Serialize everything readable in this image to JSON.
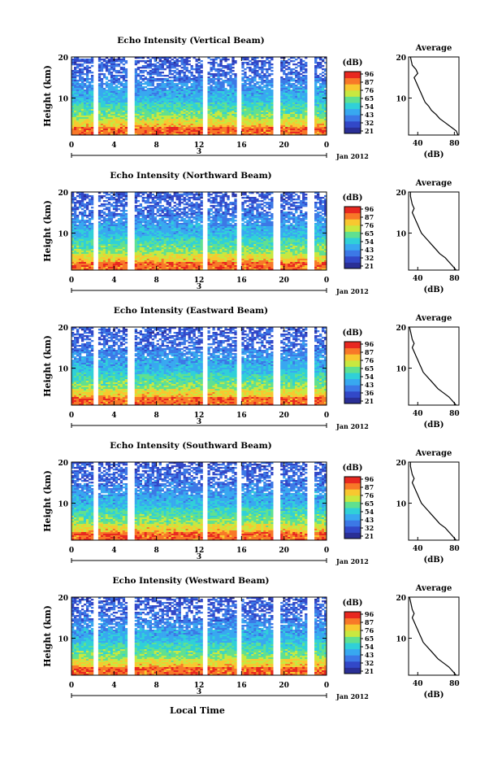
{
  "chart_data": [
    {
      "type": "heatmap",
      "title": "Echo Intensity (Vertical Beam)",
      "ylabel": "Height (km)",
      "x_ticks": [
        "0",
        "4",
        "8",
        "12",
        "16",
        "20",
        "0"
      ],
      "y_ticks": [
        "20",
        "10"
      ],
      "xlim": [
        0,
        24
      ],
      "ylim": [
        1,
        20
      ],
      "colorbar_unit": "(dB)",
      "colorbar_ticks": [
        "96",
        "87",
        "76",
        "65",
        "54",
        "43",
        "32",
        "21"
      ],
      "date_marker": "3",
      "date_label": "Jan 2012",
      "profile": {
        "title": "Average",
        "xlabel": "(dB)",
        "x_ticks": [
          "40",
          "80"
        ],
        "y_ticks": [
          "20",
          "10"
        ],
        "xlim": [
          30,
          85
        ],
        "heights": [
          1,
          2,
          3,
          4,
          5,
          6,
          7,
          8,
          9,
          10,
          11,
          12,
          13,
          14,
          15,
          16,
          17,
          18,
          19,
          20
        ],
        "values": [
          84,
          82,
          76,
          70,
          64,
          60,
          55,
          52,
          48,
          46,
          44,
          42,
          40,
          38,
          36,
          40,
          38,
          34,
          33,
          32
        ]
      }
    },
    {
      "type": "heatmap",
      "title": "Echo Intensity (Northward Beam)",
      "ylabel": "Height (km)",
      "x_ticks": [
        "0",
        "4",
        "8",
        "12",
        "16",
        "20",
        "0"
      ],
      "y_ticks": [
        "20",
        "10"
      ],
      "xlim": [
        0,
        24
      ],
      "ylim": [
        1,
        20
      ],
      "colorbar_unit": "(dB)",
      "colorbar_ticks": [
        "96",
        "87",
        "76",
        "65",
        "54",
        "43",
        "32",
        "21"
      ],
      "date_marker": "3",
      "date_label": "Jan 2012",
      "profile": {
        "title": "Average",
        "xlabel": "(dB)",
        "x_ticks": [
          "40",
          "80"
        ],
        "y_ticks": [
          "20",
          "10"
        ],
        "xlim": [
          30,
          85
        ],
        "heights": [
          1,
          2,
          3,
          4,
          5,
          6,
          7,
          8,
          9,
          10,
          11,
          12,
          13,
          14,
          15,
          16,
          17,
          18,
          19,
          20
        ],
        "values": [
          82,
          78,
          74,
          70,
          64,
          60,
          56,
          52,
          48,
          44,
          42,
          40,
          38,
          36,
          34,
          36,
          34,
          33,
          32,
          32
        ]
      }
    },
    {
      "type": "heatmap",
      "title": "Echo Intensity (Eastward Beam)",
      "ylabel": "Height (km)",
      "x_ticks": [
        "0",
        "4",
        "8",
        "12",
        "16",
        "20",
        "0"
      ],
      "y_ticks": [
        "20",
        "10"
      ],
      "xlim": [
        0,
        24
      ],
      "ylim": [
        1,
        20
      ],
      "colorbar_unit": "(dB)",
      "colorbar_ticks": [
        "96",
        "87",
        "76",
        "65",
        "54",
        "43",
        "36",
        "21"
      ],
      "date_marker": "3",
      "date_label": "Jan 2012",
      "profile": {
        "title": "Average",
        "xlabel": "(dB)",
        "x_ticks": [
          "40",
          "80"
        ],
        "y_ticks": [
          "20",
          "10"
        ],
        "xlim": [
          30,
          85
        ],
        "heights": [
          1,
          2,
          3,
          4,
          5,
          6,
          7,
          8,
          9,
          10,
          11,
          12,
          13,
          14,
          15,
          16,
          17,
          18,
          19,
          20
        ],
        "values": [
          82,
          78,
          74,
          68,
          62,
          58,
          54,
          50,
          46,
          44,
          42,
          40,
          38,
          36,
          34,
          36,
          34,
          33,
          32,
          31
        ]
      }
    },
    {
      "type": "heatmap",
      "title": "Echo Intensity (Southward Beam)",
      "ylabel": "Height (km)",
      "x_ticks": [
        "0",
        "4",
        "8",
        "12",
        "16",
        "20",
        "0"
      ],
      "y_ticks": [
        "20",
        "10"
      ],
      "xlim": [
        0,
        24
      ],
      "ylim": [
        1,
        20
      ],
      "colorbar_unit": "(dB)",
      "colorbar_ticks": [
        "96",
        "87",
        "76",
        "65",
        "54",
        "43",
        "32",
        "21"
      ],
      "date_marker": "3",
      "date_label": "Jan 2012",
      "profile": {
        "title": "Average",
        "xlabel": "(dB)",
        "x_ticks": [
          "40",
          "80"
        ],
        "y_ticks": [
          "20",
          "10"
        ],
        "xlim": [
          30,
          85
        ],
        "heights": [
          1,
          2,
          3,
          4,
          5,
          6,
          7,
          8,
          9,
          10,
          11,
          12,
          13,
          14,
          15,
          16,
          17,
          18,
          19,
          20
        ],
        "values": [
          82,
          78,
          74,
          70,
          64,
          60,
          56,
          52,
          48,
          44,
          42,
          40,
          38,
          36,
          34,
          36,
          34,
          33,
          32,
          32
        ]
      }
    },
    {
      "type": "heatmap",
      "title": "Echo Intensity (Westward Beam)",
      "ylabel": "Height (km)",
      "x_ticks": [
        "0",
        "4",
        "8",
        "12",
        "16",
        "20",
        "0"
      ],
      "y_ticks": [
        "20",
        "10"
      ],
      "xlim": [
        0,
        24
      ],
      "ylim": [
        1,
        20
      ],
      "colorbar_unit": "(dB)",
      "colorbar_ticks": [
        "96",
        "87",
        "76",
        "65",
        "54",
        "43",
        "32",
        "21"
      ],
      "date_marker": "3",
      "date_label": "Jan 2012",
      "profile": {
        "title": "Average",
        "xlabel": "(dB)",
        "x_ticks": [
          "40",
          "80"
        ],
        "y_ticks": [
          "20",
          "10"
        ],
        "xlim": [
          30,
          85
        ],
        "heights": [
          1,
          2,
          3,
          4,
          5,
          6,
          7,
          8,
          9,
          10,
          11,
          12,
          13,
          14,
          15,
          16,
          17,
          18,
          19,
          20
        ],
        "values": [
          82,
          78,
          74,
          68,
          62,
          58,
          54,
          50,
          46,
          44,
          42,
          40,
          38,
          36,
          34,
          36,
          34,
          33,
          32,
          31
        ]
      }
    }
  ],
  "shared_xlabel": "Local Time",
  "data_gaps_hours": [
    2.3,
    5.6,
    12.6,
    15.8,
    19.3,
    22.5
  ],
  "colors": [
    "#2a2f96",
    "#3248c8",
    "#3c78e6",
    "#38a8f0",
    "#30d0d8",
    "#60e090",
    "#c8e840",
    "#f8c830",
    "#f87828",
    "#e82820"
  ]
}
